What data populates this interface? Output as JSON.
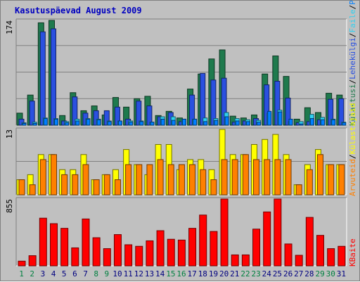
{
  "title": "Kasutuspäevad August 2009",
  "colors": {
    "kulastusi": "#1f7a4d",
    "lehekulgi": "#2a50e0",
    "faile": "#30d0f0",
    "poordumisi": "#0080ff",
    "arvuteid": "#ff8000",
    "kulastajaid": "#ffff00",
    "kbaite": "#ff0000",
    "weekday_label": "#000080",
    "weekend_label": "#008040",
    "background": "#c0c0c0"
  },
  "chart_data": {
    "type": "bar",
    "categories": [
      "1",
      "2",
      "3",
      "4",
      "5",
      "6",
      "7",
      "8",
      "9",
      "10",
      "11",
      "12",
      "13",
      "14",
      "15",
      "16",
      "17",
      "18",
      "19",
      "20",
      "21",
      "22",
      "23",
      "24",
      "25",
      "26",
      "27",
      "28",
      "29",
      "30",
      "31"
    ],
    "weekend_days": [
      "1",
      "2",
      "8",
      "9",
      "15",
      "16",
      "22",
      "23",
      "29",
      "30"
    ],
    "panels": [
      {
        "name": "top",
        "ymax_label": "174",
        "ylim": [
          0,
          174
        ],
        "legend": [
          "Külastusi",
          "Lehekülgi",
          "Faile",
          "Pöördumisi"
        ],
        "series": [
          {
            "name": "Külastusi",
            "values": [
              20,
              50,
              170,
              174,
              16,
              54,
              24,
              32,
              17,
              46,
              30,
              44,
              48,
              16,
              23,
              12,
              60,
              85,
              110,
              125,
              15,
              12,
              17,
              85,
              115,
              81,
              10,
              29,
              21,
              53,
              50
            ]
          },
          {
            "name": "Lehekülgi",
            "values": [
              10,
              40,
              155,
              160,
              7,
              47,
              20,
              24,
              24,
              30,
              10,
              40,
              32,
              14,
              21,
              6,
              50,
              86,
              75,
              78,
              5,
              7,
              11,
              67,
              73,
              45,
              4,
              6,
              9,
              43,
              44
            ]
          },
          {
            "name": "Faile",
            "values": [
              4,
              5,
              12,
              11,
              6,
              10,
              11,
              10,
              7,
              7,
              7,
              7,
              5,
              14,
              14,
              10,
              10,
              12,
              11,
              21,
              11,
              9,
              8,
              20,
              25,
              6,
              6,
              18,
              13,
              10,
              5
            ]
          },
          {
            "name": "Pöördumisi",
            "values": [
              3,
              3,
              11,
              10,
              4,
              7,
              10,
              9,
              6,
              7,
              5,
              6,
              5,
              10,
              8,
              10,
              10,
              6,
              8,
              14,
              7,
              6,
              5,
              23,
              22,
              10,
              2,
              11,
              9,
              9,
              4
            ]
          }
        ]
      },
      {
        "name": "middle",
        "ymax_label": "13",
        "ylim": [
          0,
          13
        ],
        "legend": [
          "Arvuteid",
          "Külastajaid"
        ],
        "series": [
          {
            "name": "Külastajaid",
            "values": [
              3,
              4,
              8,
              8,
              5,
              5,
              8,
              3,
              4,
              5,
              9,
              6,
              4,
              10,
              10,
              5,
              7,
              7,
              5,
              13,
              8,
              8,
              10,
              11,
              12,
              8,
              2,
              6,
              9,
              6,
              6
            ]
          },
          {
            "name": "Arvuteid",
            "values": [
              3,
              2,
              7,
              8,
              4,
              4,
              6,
              3,
              4,
              3,
              6,
              6,
              6,
              7,
              6,
              6,
              6,
              5,
              3,
              7,
              7,
              8,
              7,
              7,
              7,
              7,
              2,
              5,
              8,
              6,
              6
            ]
          }
        ]
      },
      {
        "name": "bottom",
        "ymax_label": "855",
        "ylim": [
          0,
          855
        ],
        "legend": [
          "KBaite"
        ],
        "series": [
          {
            "name": "KBaite",
            "values": [
              60,
              130,
              610,
              540,
              480,
              230,
              600,
              360,
              220,
              400,
              270,
              250,
              320,
              450,
              340,
              330,
              480,
              650,
              440,
              855,
              140,
              140,
              470,
              690,
              855,
              280,
              135,
              620,
              390,
              220,
              250
            ]
          }
        ]
      }
    ]
  }
}
